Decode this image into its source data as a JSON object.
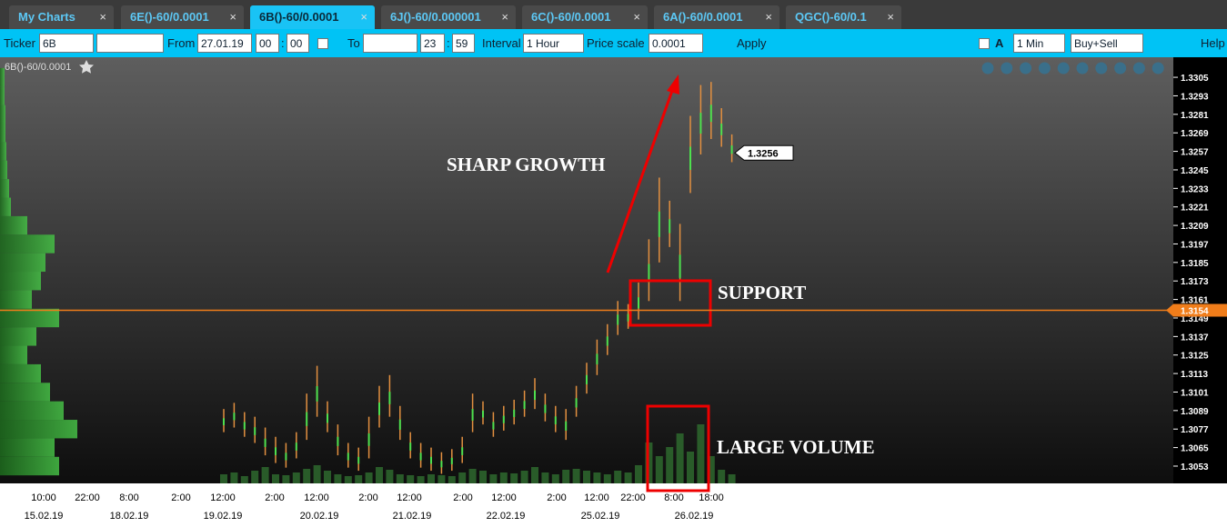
{
  "tabs": [
    "My Charts",
    "6E()-60/0.0001",
    "6B()-60/0.0001",
    "6J()-60/0.000001",
    "6C()-60/0.0001",
    "6A()-60/0.0001",
    "QGC()-60/0.1"
  ],
  "toolbar": {
    "ticker_label": "Ticker",
    "ticker": "6B",
    "from_label": "From",
    "from_date": "27.01.19",
    "from_hour": "00",
    "from_min": "00",
    "separator": ":",
    "to_label": "To",
    "to_hour": "23",
    "to_min": "59",
    "interval_label": "Interval",
    "interval": "1 Hour",
    "price_scale_label": "Price scale",
    "price_scale": "0.0001",
    "apply": "Apply",
    "auto": "A",
    "timeframe": "1 Min",
    "side": "Buy+Sell",
    "help": "Help"
  },
  "chart_data": {
    "type": "bar-chart",
    "title": "6B()-60/0.0001",
    "ylim": [
      1.30418,
      1.3318
    ],
    "yticks": [
      1.3305,
      1.3293,
      1.3281,
      1.3269,
      1.3257,
      1.3245,
      1.3233,
      1.3221,
      1.3209,
      1.3197,
      1.3185,
      1.3173,
      1.3161,
      1.3149,
      1.3137,
      1.3125,
      1.3113,
      1.3101,
      1.3089,
      1.3077,
      1.3065,
      1.3053
    ],
    "time_labels": [
      "10:00",
      "22:00",
      "8:00",
      "2:00",
      "12:00",
      "2:00",
      "12:00",
      "2:00",
      "12:00",
      "2:00",
      "12:00",
      "2:00",
      "12:00",
      "22:00",
      "8:00",
      "18:00"
    ],
    "date_labels": [
      "15.02.19",
      "18.02.19",
      "19.02.19",
      "20.02.19",
      "21.02.19",
      "22.02.19",
      "25.02.19",
      "26.02.19"
    ],
    "lows": [
      1.3075,
      1.3078,
      1.3072,
      1.3068,
      1.306,
      1.3055,
      1.3052,
      1.3058,
      1.307,
      1.3085,
      1.3075,
      1.306,
      1.3052,
      1.305,
      1.3058,
      1.3078,
      1.3085,
      1.307,
      1.3058,
      1.3052,
      1.305,
      1.3048,
      1.305,
      1.3055,
      1.3075,
      1.308,
      1.3072,
      1.3076,
      1.308,
      1.3085,
      1.309,
      1.3082,
      1.3075,
      1.307,
      1.3085,
      1.31,
      1.3112,
      1.3125,
      1.3138,
      1.3142,
      1.3148,
      1.316,
      1.3185,
      1.3195,
      1.316,
      1.323,
      1.3255,
      1.3265,
      1.326,
      1.325
    ],
    "highs": [
      1.309,
      1.3094,
      1.3088,
      1.3085,
      1.3078,
      1.3072,
      1.3068,
      1.3075,
      1.31,
      1.3118,
      1.3095,
      1.308,
      1.3068,
      1.3065,
      1.3085,
      1.3105,
      1.3112,
      1.3092,
      1.3075,
      1.3068,
      1.3065,
      1.3062,
      1.3064,
      1.3072,
      1.31,
      1.3095,
      1.3088,
      1.3092,
      1.3096,
      1.3102,
      1.311,
      1.31,
      1.3092,
      1.309,
      1.3105,
      1.312,
      1.3135,
      1.3145,
      1.316,
      1.3158,
      1.3172,
      1.32,
      1.324,
      1.3225,
      1.321,
      1.328,
      1.33,
      1.3302,
      1.3285,
      1.3268
    ],
    "volumes": [
      10,
      12,
      8,
      14,
      18,
      10,
      9,
      12,
      16,
      20,
      14,
      10,
      8,
      9,
      12,
      18,
      15,
      10,
      9,
      8,
      10,
      9,
      8,
      12,
      16,
      14,
      10,
      12,
      11,
      14,
      18,
      12,
      10,
      15,
      16,
      14,
      12,
      10,
      14,
      12,
      20,
      45,
      30,
      40,
      55,
      35,
      65,
      30,
      15,
      10
    ],
    "volume_profile": [
      5,
      5,
      6,
      6,
      7,
      8,
      10,
      12,
      30,
      60,
      50,
      45,
      35,
      65,
      40,
      30,
      45,
      55,
      70,
      85,
      60,
      65
    ],
    "support": 1.3154,
    "last_price": 1.3256,
    "annotations": [
      "SHARP GROWTH",
      "SUPPORT",
      "LARGE VOLUME"
    ]
  }
}
